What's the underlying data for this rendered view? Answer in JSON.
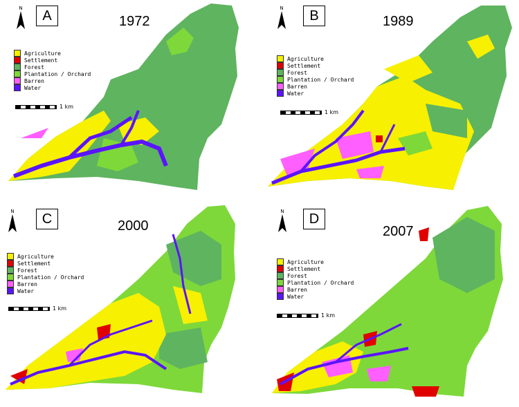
{
  "colors": {
    "agriculture": "#f7f000",
    "settlement": "#e00000",
    "forest": "#5fb45f",
    "plantation": "#7ed83a",
    "barren": "#ff5fff",
    "water": "#5a14ff"
  },
  "legend_items": [
    {
      "key": "agriculture",
      "label": "Agriculture"
    },
    {
      "key": "settlement",
      "label": "Settlement"
    },
    {
      "key": "forest",
      "label": "Forest"
    },
    {
      "key": "plantation",
      "label": "Plantation / Orchard"
    },
    {
      "key": "barren",
      "label": "Barren"
    },
    {
      "key": "water",
      "label": "Water"
    }
  ],
  "north_label": "N",
  "scale_label": "1 km",
  "panels": [
    {
      "letter": "A",
      "year": "1972"
    },
    {
      "letter": "B",
      "year": "1989"
    },
    {
      "letter": "C",
      "year": "2000"
    },
    {
      "letter": "D",
      "year": "2007"
    }
  ]
}
